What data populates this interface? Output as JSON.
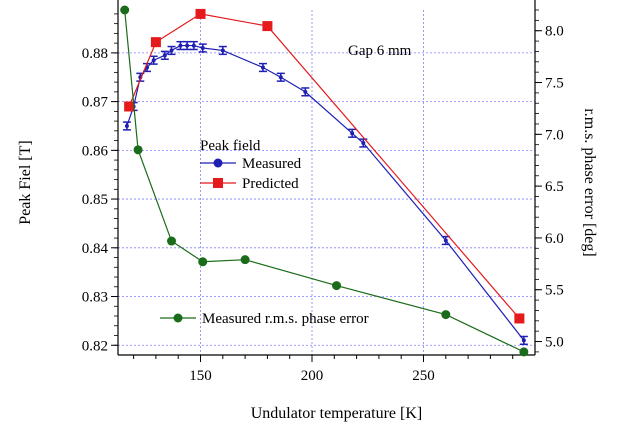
{
  "chart_data": {
    "type": "line",
    "xlabel": "Undulator temperature [K]",
    "ylabel_left": "Peak Fiel [T]",
    "ylabel_right": "r.m.s. phase error [deg]",
    "annotation": "Gap 6 mm",
    "legend_title": "Peak field",
    "xlim": [
      113,
      300
    ],
    "ylim_left": [
      0.818,
      0.8888
    ],
    "ylim_right": [
      4.87,
      8.2
    ],
    "x_ticks": [
      150,
      200,
      250
    ],
    "y_ticks_left": [
      0.82,
      0.83,
      0.84,
      0.85,
      0.86,
      0.87,
      0.88
    ],
    "y_ticks_left_labels": [
      "0.82",
      "0.83",
      "0.84",
      "0.85",
      "0.86",
      "0.87",
      "0.88"
    ],
    "y_ticks_right": [
      5.0,
      5.5,
      6.0,
      6.5,
      7.0,
      7.5,
      8.0
    ],
    "y_ticks_right_labels": [
      "5.0",
      "5.5",
      "6.0",
      "6.5",
      "7.0",
      "7.5",
      "8.0"
    ],
    "grid": true,
    "series": [
      {
        "name": "Measured",
        "axis": "left",
        "color": "#1f1fb4",
        "marker": "circle",
        "x": [
          117,
          120,
          123,
          126,
          129,
          134,
          137,
          141,
          144,
          147,
          151,
          160,
          178,
          186,
          197,
          218,
          223,
          260,
          295
        ],
        "y": [
          0.865,
          0.869,
          0.875,
          0.877,
          0.8785,
          0.8795,
          0.8805,
          0.8815,
          0.8815,
          0.8815,
          0.881,
          0.8805,
          0.877,
          0.875,
          0.872,
          0.8635,
          0.8615,
          0.8415,
          0.821
        ],
        "err": [
          0.0008,
          0.0008,
          0.0008,
          0.0008,
          0.0008,
          0.0008,
          0.0008,
          0.0008,
          0.0008,
          0.0008,
          0.0008,
          0.0008,
          0.0008,
          0.0008,
          0.0008,
          0.0008,
          0.0008,
          0.0008,
          0.0008
        ]
      },
      {
        "name": "Predicted",
        "axis": "left",
        "color": "#e41a1c",
        "marker": "square",
        "x": [
          118,
          130,
          150,
          180,
          293
        ],
        "y": [
          0.869,
          0.8822,
          0.888,
          0.8855,
          0.8255
        ]
      },
      {
        "name": "Measured r.m.s. phase error",
        "axis": "right",
        "color": "#1a6b1a",
        "marker": "circle",
        "x": [
          116,
          122,
          137,
          151,
          170,
          211,
          260,
          295
        ],
        "y": [
          8.2,
          6.85,
          5.97,
          5.77,
          5.79,
          5.54,
          5.26,
          4.9
        ]
      }
    ]
  }
}
